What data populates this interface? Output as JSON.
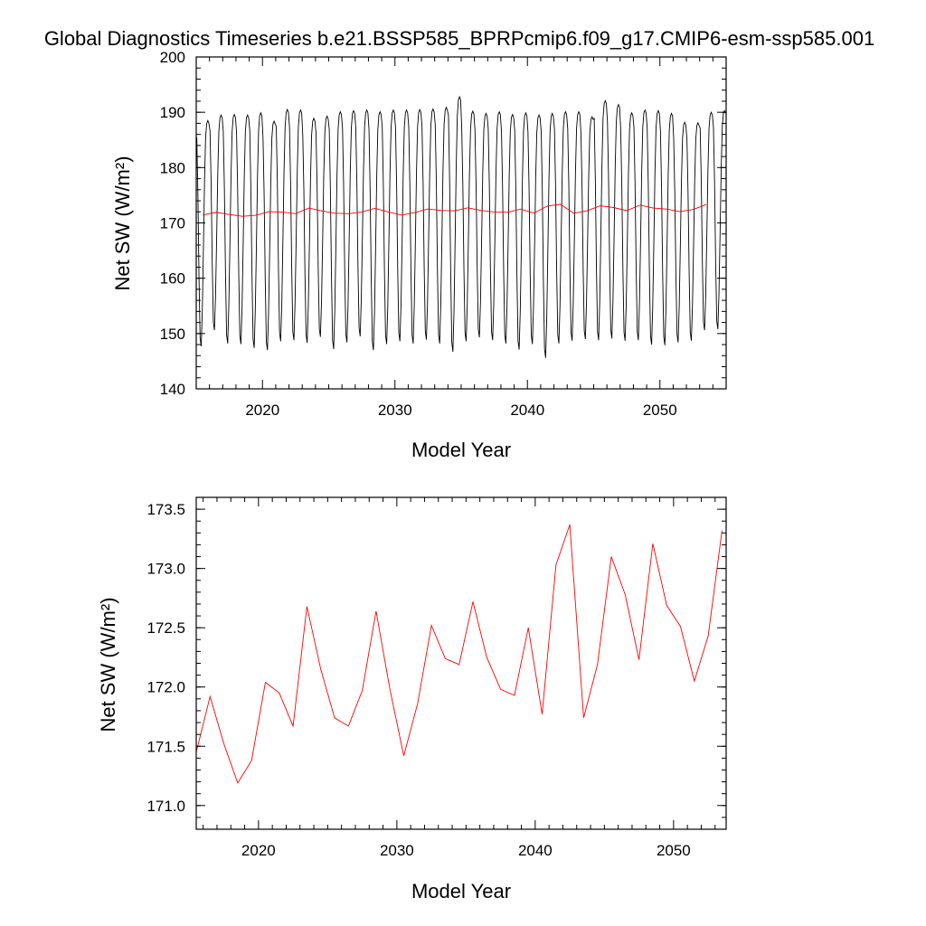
{
  "title": "Global Diagnostics Timeseries b.e21.BSSP585_BPRPcmip6.f09_g17.CMIP6-esm-ssp585.001",
  "chart_data": [
    {
      "type": "line",
      "ylabel": "Net SW (W/m²)",
      "xlabel": "Model Year",
      "xlim": [
        2015,
        2055
      ],
      "ylim": [
        140,
        200
      ],
      "x_ticks": [
        "2020",
        "2030",
        "2040",
        "2050"
      ],
      "y_ticks": [
        "140",
        "150",
        "160",
        "170",
        "180",
        "190",
        "200"
      ],
      "series": [
        {
          "color": "#000000",
          "x_start": 2015.042,
          "x_step": 0.08333,
          "seasonal_cycle": [
            186.0,
            176.0,
            161.0,
            150.0,
            148.5,
            155.0,
            166.0,
            178.0,
            186.0,
            188.5,
            189.0,
            188.5
          ],
          "annual_max": [
            188.5,
            189.5,
            189.6,
            189.5,
            189.9,
            188.4,
            190.5,
            190.4,
            188.9,
            189.3,
            190.1,
            190.3,
            190.4,
            190.1,
            190.4,
            190.4,
            190.5,
            190.6,
            190.9,
            192.8,
            190.2,
            189.8,
            190.1,
            189.6,
            189.9,
            189.5,
            189.8,
            190.1,
            190.1,
            189.2,
            192.1,
            191.4,
            189.9,
            190.4,
            190.3,
            189.8,
            188.2,
            188.1,
            190.0,
            190.3
          ],
          "annual_min": [
            147.7,
            150.6,
            148.2,
            148.1,
            147.4,
            147.0,
            148.6,
            148.8,
            148.3,
            149.4,
            147.2,
            148.4,
            149.5,
            147.0,
            148.1,
            148.6,
            148.2,
            148.9,
            148.2,
            146.7,
            148.6,
            149.3,
            148.8,
            148.2,
            147.1,
            148.1,
            145.6,
            148.2,
            148.7,
            149.0,
            148.8,
            149.1,
            148.7,
            148.8,
            148.0,
            147.9,
            148.4,
            148.7,
            150.6,
            150.8
          ]
        },
        {
          "color": "#ff0000",
          "x": [
            2015.5,
            2016.5,
            2017.5,
            2018.5,
            2019.5,
            2020.5,
            2021.5,
            2022.5,
            2023.5,
            2024.5,
            2025.5,
            2026.5,
            2027.5,
            2028.5,
            2029.5,
            2030.5,
            2031.5,
            2032.5,
            2033.5,
            2034.5,
            2035.5,
            2036.5,
            2037.5,
            2038.5,
            2039.5,
            2040.5,
            2041.5,
            2042.5,
            2043.5,
            2044.5,
            2045.5,
            2046.5,
            2047.5,
            2048.5,
            2049.5,
            2050.5,
            2051.5,
            2052.5,
            2053.5
          ],
          "values": [
            171.45,
            171.92,
            171.52,
            171.19,
            171.38,
            172.04,
            171.95,
            171.67,
            172.68,
            172.15,
            171.74,
            171.67,
            171.97,
            172.64,
            171.98,
            171.42,
            171.86,
            172.52,
            172.24,
            172.19,
            172.72,
            172.25,
            171.98,
            171.93,
            172.5,
            171.77,
            173.03,
            173.37,
            171.74,
            172.19,
            173.1,
            172.78,
            172.23,
            173.21,
            172.69,
            172.51,
            172.05,
            172.43,
            173.32
          ]
        }
      ]
    },
    {
      "type": "line",
      "ylabel": "Net SW (W/m²)",
      "xlabel": "Model Year",
      "xlim": [
        2015.5,
        2053.8
      ],
      "ylim": [
        170.8,
        173.6
      ],
      "x_ticks": [
        "2020",
        "2030",
        "2040",
        "2050"
      ],
      "y_ticks": [
        "171.0",
        "171.5",
        "172.0",
        "172.5",
        "173.0",
        "173.5"
      ],
      "series": [
        {
          "color": "#ff0000",
          "x": [
            2015.5,
            2016.5,
            2017.5,
            2018.5,
            2019.5,
            2020.5,
            2021.5,
            2022.5,
            2023.5,
            2024.5,
            2025.5,
            2026.5,
            2027.5,
            2028.5,
            2029.5,
            2030.5,
            2031.5,
            2032.5,
            2033.5,
            2034.5,
            2035.5,
            2036.5,
            2037.5,
            2038.5,
            2039.5,
            2040.5,
            2041.5,
            2042.5,
            2043.5,
            2044.5,
            2045.5,
            2046.5,
            2047.5,
            2048.5,
            2049.5,
            2050.5,
            2051.5,
            2052.5,
            2053.5
          ],
          "values": [
            171.45,
            171.92,
            171.52,
            171.19,
            171.38,
            172.04,
            171.95,
            171.67,
            172.68,
            172.15,
            171.74,
            171.67,
            171.97,
            172.64,
            171.98,
            171.42,
            171.86,
            172.52,
            172.24,
            172.19,
            172.72,
            172.25,
            171.98,
            171.93,
            172.5,
            171.77,
            173.03,
            173.37,
            171.74,
            172.19,
            173.1,
            172.78,
            172.23,
            173.21,
            172.69,
            172.51,
            172.05,
            172.43,
            173.32
          ]
        }
      ]
    }
  ]
}
